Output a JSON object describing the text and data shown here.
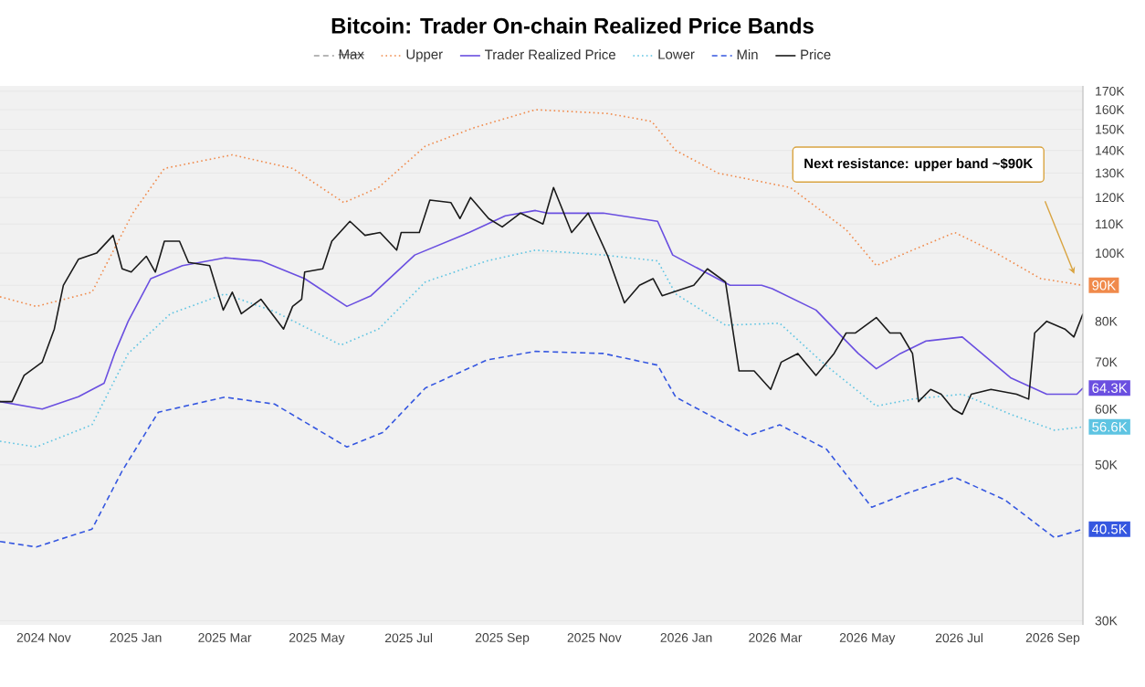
{
  "chart_data": {
    "type": "line",
    "title": "Bitcoin: Trader On-chain Realized Price Bands",
    "xlim": [
      "2024-10-03",
      "2026-09-21"
    ],
    "xticks": [
      {
        "value": "2024-11-01",
        "label": "2024 Nov"
      },
      {
        "value": "2025-01-01",
        "label": "2025 Jan"
      },
      {
        "value": "2025-03-01",
        "label": "2025 Mar"
      },
      {
        "value": "2025-05-01",
        "label": "2025 May"
      },
      {
        "value": "2025-07-01",
        "label": "2025 Jul"
      },
      {
        "value": "2025-09-01",
        "label": "2025 Sep"
      },
      {
        "value": "2025-11-01",
        "label": "2025 Nov"
      },
      {
        "value": "2026-01-01",
        "label": "2026 Jan"
      },
      {
        "value": "2026-03-01",
        "label": "2026 Mar"
      },
      {
        "value": "2026-05-01",
        "label": "2026 May"
      },
      {
        "value": "2026-07-01",
        "label": "2026 Jul"
      },
      {
        "value": "2026-09-01",
        "label": "2026 Sep"
      }
    ],
    "ylim": [
      29600,
      173000
    ],
    "log": true,
    "yticks": [
      {
        "value": 30000,
        "label": "30K"
      },
      {
        "value": 40000,
        "label": null
      },
      {
        "value": 50000,
        "label": "50K"
      },
      {
        "value": 60000,
        "label": "60K"
      },
      {
        "value": 70000,
        "label": "70K"
      },
      {
        "value": 80000,
        "label": "80K"
      },
      {
        "value": 90000,
        "label": null
      },
      {
        "value": 100000,
        "label": "100K"
      },
      {
        "value": 110000,
        "label": "110K"
      },
      {
        "value": 120000,
        "label": "120K"
      },
      {
        "value": 130000,
        "label": "130K"
      },
      {
        "value": 140000,
        "label": "140K"
      },
      {
        "value": 150000,
        "label": "150K"
      },
      {
        "value": 160000,
        "label": "160K"
      },
      {
        "value": 170000,
        "label": "170K"
      }
    ],
    "grid": "y",
    "legend": "top",
    "annotations": [
      "Next resistance: upper band ~$90K"
    ],
    "series": [
      {
        "name": "Max",
        "color": "#9e9e9e",
        "line_style": "dashed"
      },
      {
        "name": "Upper",
        "color": "#f08a4b",
        "line_style": "dotted",
        "x": [
          "2024-10-03",
          "2024-10-27",
          "2024-12-03",
          "2024-12-30",
          "2025-01-20",
          "2025-03-06",
          "2025-04-15",
          "2025-05-19",
          "2025-06-11",
          "2025-07-12",
          "2025-08-14",
          "2025-09-23",
          "2025-11-10",
          "2025-12-09",
          "2025-12-25",
          "2026-01-22",
          "2026-03-11",
          "2026-04-17",
          "2026-05-07",
          "2026-05-31",
          "2026-06-28",
          "2026-07-22",
          "2026-08-24",
          "2026-09-21"
        ],
        "values": [
          86700,
          84000,
          88000,
          114000,
          132000,
          138000,
          132000,
          118000,
          124000,
          142000,
          151000,
          160000,
          158000,
          154000,
          140000,
          130000,
          124000,
          108000,
          96000,
          101000,
          107000,
          101000,
          92000,
          90000
        ],
        "value_labels": [
          null,
          null,
          null,
          null,
          null,
          null,
          null,
          null,
          null,
          null,
          null,
          null,
          null,
          null,
          null,
          null,
          null,
          null,
          null,
          null,
          null,
          null,
          null,
          "90K"
        ]
      },
      {
        "name": "Trader Realized Price",
        "color": "#6a4fe0",
        "line_style": "solid",
        "x": [
          "2024-10-03",
          "2024-10-31",
          "2024-11-24",
          "2024-12-11",
          "2024-12-18",
          "2024-12-27",
          "2025-01-11",
          "2025-02-01",
          "2025-03-01",
          "2025-03-25",
          "2025-04-23",
          "2025-05-21",
          "2025-06-06",
          "2025-07-05",
          "2025-08-10",
          "2025-09-03",
          "2025-09-23",
          "2025-10-01",
          "2025-11-07",
          "2025-12-13",
          "2025-12-23",
          "2026-01-30",
          "2026-02-20",
          "2026-02-27",
          "2026-03-28",
          "2026-04-25",
          "2026-05-07",
          "2026-05-23",
          "2026-06-09",
          "2026-07-03",
          "2026-08-04",
          "2026-08-28",
          "2026-09-17",
          "2026-09-21"
        ],
        "values": [
          61500,
          60000,
          62500,
          65300,
          72000,
          80000,
          92000,
          96000,
          98500,
          97500,
          92000,
          84000,
          87000,
          99400,
          107000,
          113000,
          115000,
          114000,
          114000,
          111000,
          99400,
          90000,
          90000,
          89000,
          83000,
          72000,
          68500,
          72000,
          75000,
          76000,
          66500,
          63000,
          63000,
          64300
        ],
        "value_labels": [
          null,
          null,
          null,
          null,
          null,
          null,
          null,
          null,
          null,
          null,
          null,
          null,
          null,
          null,
          null,
          null,
          null,
          null,
          null,
          null,
          null,
          null,
          null,
          null,
          null,
          null,
          null,
          null,
          null,
          null,
          null,
          null,
          null,
          "64.3K"
        ]
      },
      {
        "name": "Lower",
        "color": "#5ec4e2",
        "line_style": "dotted",
        "x": [
          "2024-10-03",
          "2024-10-27",
          "2024-12-03",
          "2024-12-27",
          "2025-01-24",
          "2025-03-01",
          "2025-04-03",
          "2025-05-17",
          "2025-06-11",
          "2025-07-12",
          "2025-08-22",
          "2025-09-23",
          "2025-11-07",
          "2025-12-13",
          "2025-12-25",
          "2026-01-27",
          "2026-03-04",
          "2026-04-01",
          "2026-05-07",
          "2026-05-31",
          "2026-07-03",
          "2026-08-04",
          "2026-09-02",
          "2026-09-21"
        ],
        "values": [
          54000,
          53000,
          57000,
          72000,
          82000,
          87500,
          82600,
          74000,
          78000,
          91000,
          97500,
          101000,
          99400,
          97500,
          87500,
          79000,
          79500,
          70000,
          60600,
          62000,
          63000,
          59000,
          56000,
          56600
        ],
        "value_labels": [
          null,
          null,
          null,
          null,
          null,
          null,
          null,
          null,
          null,
          null,
          null,
          null,
          null,
          null,
          null,
          null,
          null,
          null,
          null,
          null,
          null,
          null,
          null,
          "56.6K"
        ]
      },
      {
        "name": "Min",
        "color": "#3557e0",
        "line_style": "dashed",
        "x": [
          "2024-10-03",
          "2024-10-27",
          "2024-12-03",
          "2024-12-23",
          "2025-01-16",
          "2025-03-01",
          "2025-04-03",
          "2025-05-21",
          "2025-06-14",
          "2025-07-12",
          "2025-08-22",
          "2025-09-23",
          "2025-11-07",
          "2025-12-13",
          "2025-12-25",
          "2026-02-11",
          "2026-03-04",
          "2026-04-04",
          "2026-05-04",
          "2026-05-28",
          "2026-06-28",
          "2026-07-31",
          "2026-09-02",
          "2026-09-21"
        ],
        "values": [
          38900,
          38200,
          40500,
          49000,
          59400,
          62400,
          61000,
          53000,
          55600,
          64300,
          70500,
          72500,
          72000,
          69300,
          62400,
          55000,
          57000,
          52600,
          43500,
          45600,
          48000,
          44600,
          39400,
          40500
        ],
        "value_labels": [
          null,
          null,
          null,
          null,
          null,
          null,
          null,
          null,
          null,
          null,
          null,
          null,
          null,
          null,
          null,
          null,
          null,
          null,
          null,
          null,
          null,
          null,
          null,
          "40.5K"
        ]
      },
      {
        "name": "Price",
        "color": "#1a1a1a",
        "line_style": "solid",
        "x": [
          "2024-10-03",
          "2024-10-11",
          "2024-10-19",
          "2024-10-31",
          "2024-11-08",
          "2024-11-14",
          "2024-11-24",
          "2024-12-06",
          "2024-12-17",
          "2024-12-23",
          "2024-12-29",
          "2025-01-08",
          "2025-01-14",
          "2025-01-20",
          "2025-01-30",
          "2025-02-05",
          "2025-02-19",
          "2025-02-28",
          "2025-03-06",
          "2025-03-12",
          "2025-03-25",
          "2025-04-09",
          "2025-04-15",
          "2025-04-21",
          "2025-04-23",
          "2025-05-05",
          "2025-05-11",
          "2025-05-23",
          "2025-06-02",
          "2025-06-12",
          "2025-06-23",
          "2025-06-26",
          "2025-07-08",
          "2025-07-15",
          "2025-07-29",
          "2025-08-04",
          "2025-08-11",
          "2025-08-23",
          "2025-09-01",
          "2025-09-13",
          "2025-09-28",
          "2025-10-05",
          "2025-10-17",
          "2025-10-28",
          "2025-11-10",
          "2025-11-21",
          "2025-12-01",
          "2025-12-10",
          "2025-12-16",
          "2026-01-06",
          "2026-01-15",
          "2026-01-27",
          "2026-02-05",
          "2026-02-15",
          "2026-02-26",
          "2026-03-05",
          "2026-03-16",
          "2026-03-28",
          "2026-04-09",
          "2026-04-17",
          "2026-04-23",
          "2026-05-07",
          "2026-05-16",
          "2026-05-23",
          "2026-05-31",
          "2026-06-04",
          "2026-06-12",
          "2026-06-19",
          "2026-06-27",
          "2026-07-03",
          "2026-07-09",
          "2026-07-22",
          "2026-08-08",
          "2026-08-16",
          "2026-08-20",
          "2026-08-28",
          "2026-09-09",
          "2026-09-15",
          "2026-09-21"
        ],
        "values": [
          61500,
          61500,
          67000,
          70000,
          78000,
          90000,
          98000,
          100000,
          106000,
          95000,
          94000,
          99000,
          94000,
          104000,
          104000,
          97000,
          96000,
          83000,
          88000,
          82000,
          86000,
          78000,
          84000,
          86000,
          94000,
          95000,
          104000,
          111000,
          106000,
          107000,
          101000,
          107000,
          107000,
          119000,
          118000,
          112000,
          120000,
          112000,
          109000,
          114000,
          110000,
          124000,
          107000,
          114000,
          99000,
          85000,
          90000,
          92000,
          87000,
          90000,
          95000,
          91000,
          68000,
          68000,
          64000,
          70000,
          72000,
          67000,
          72000,
          77000,
          77000,
          81000,
          77000,
          77000,
          72000,
          61500,
          64000,
          63000,
          60000,
          59000,
          63000,
          64000,
          63000,
          62000,
          77000,
          80000,
          78000,
          76000,
          82000
        ]
      }
    ]
  }
}
